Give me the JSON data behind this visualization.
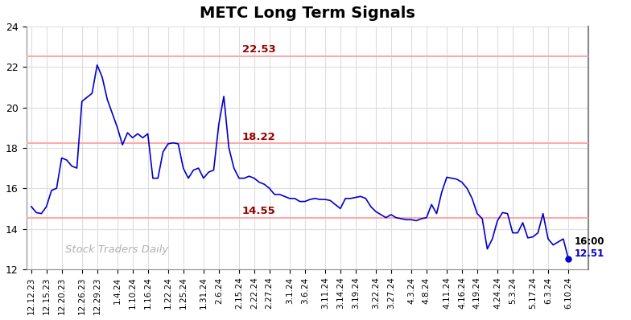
{
  "title": "METC Long Term Signals",
  "title_fontsize": 14,
  "background_color": "#ffffff",
  "line_color": "#0000cc",
  "watermark": "Stock Traders Daily",
  "watermark_color": "#b0b0b0",
  "hlines": [
    22.53,
    18.22,
    14.55
  ],
  "hline_color": "#ffaaaa",
  "hline_label_color": "#990000",
  "annotation_16": "16:00",
  "annotation_price": "12.51",
  "endpoint_color": "#0000cc",
  "ylim": [
    12,
    24
  ],
  "yticks": [
    12,
    14,
    16,
    18,
    20,
    22,
    24
  ],
  "x_labels": [
    "12.12.23",
    "12.15.23",
    "12.20.23",
    "12.26.23",
    "12.29.23",
    "1.4.24",
    "1.10.24",
    "1.16.24",
    "1.22.24",
    "1.25.24",
    "1.31.24",
    "2.6.24",
    "2.15.24",
    "2.22.24",
    "2.27.24",
    "3.1.24",
    "3.6.24",
    "3.11.24",
    "3.14.24",
    "3.19.24",
    "3.22.24",
    "3.27.24",
    "4.3.24",
    "4.8.24",
    "4.11.24",
    "4.16.24",
    "4.19.24",
    "4.24.24",
    "5.3.24",
    "5.17.24",
    "6.3.24",
    "6.10.24"
  ],
  "prices": [
    15.1,
    14.8,
    14.75,
    15.1,
    15.9,
    16.0,
    17.5,
    17.4,
    17.1,
    17.0,
    20.3,
    20.5,
    20.7,
    22.1,
    21.5,
    20.4,
    19.7,
    19.0,
    18.15,
    18.75,
    18.5,
    18.7,
    18.5,
    18.7,
    16.5,
    16.5,
    17.8,
    18.2,
    18.25,
    18.2,
    17.0,
    16.5,
    16.9,
    17.0,
    16.5,
    16.8,
    16.9,
    19.15,
    20.55,
    18.0,
    17.0,
    16.5,
    16.5,
    16.6,
    16.5,
    16.3,
    16.2,
    16.0,
    15.7,
    15.7,
    15.6,
    15.5,
    15.5,
    15.35,
    15.35,
    15.45,
    15.5,
    15.45,
    15.45,
    15.4,
    15.2,
    15.0,
    15.5,
    15.5,
    15.55,
    15.6,
    15.5,
    15.1,
    14.85,
    14.7,
    14.55,
    14.7,
    14.55,
    14.5,
    14.45,
    14.45,
    14.4,
    14.5,
    14.55,
    15.2,
    14.75,
    15.8,
    16.55,
    16.5,
    16.45,
    16.3,
    16.0,
    15.5,
    14.75,
    14.5,
    13.0,
    13.5,
    14.4,
    14.8,
    14.75,
    13.8,
    13.8,
    14.3,
    13.55,
    13.6,
    13.8,
    14.75,
    13.5,
    13.2,
    13.35,
    13.5,
    12.51
  ]
}
